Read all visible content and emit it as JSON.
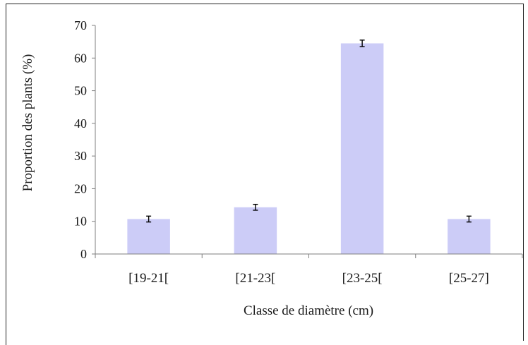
{
  "chart_data": {
    "type": "bar",
    "categories": [
      "[19-21[",
      "[21-23[",
      "[23-25[",
      "[25-27]"
    ],
    "values": [
      10.7,
      14.3,
      64.5,
      10.7
    ],
    "errors": [
      0.9,
      0.9,
      1.0,
      0.9
    ],
    "xlabel": "Classe de diamètre (cm)",
    "ylabel": "Proportion des plants (%)",
    "ylim": [
      0,
      70
    ],
    "yticks": [
      "0",
      "10",
      "20",
      "30",
      "40",
      "50",
      "60",
      "70"
    ],
    "grid": false,
    "bar_color": "#ccccf7"
  }
}
